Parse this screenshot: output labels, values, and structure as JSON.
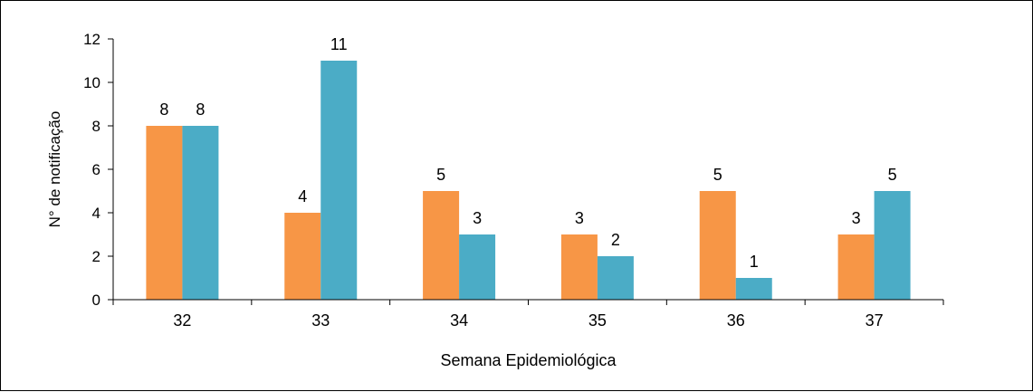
{
  "chart_data": {
    "type": "bar",
    "title": "",
    "xlabel": "Semana Epidemiológica",
    "ylabel": "N° de notificação",
    "categories": [
      "32",
      "33",
      "34",
      "35",
      "36",
      "37"
    ],
    "series": [
      {
        "values": [
          8,
          4,
          5,
          3,
          5,
          3
        ],
        "color": "#F79646"
      },
      {
        "values": [
          8,
          11,
          3,
          2,
          1,
          5
        ],
        "color": "#4BACC6"
      }
    ],
    "ylim": [
      0,
      12
    ],
    "yticks": [
      0,
      2,
      4,
      6,
      8,
      10,
      12
    ],
    "grid": false,
    "legend": "none",
    "data_labels": true
  }
}
